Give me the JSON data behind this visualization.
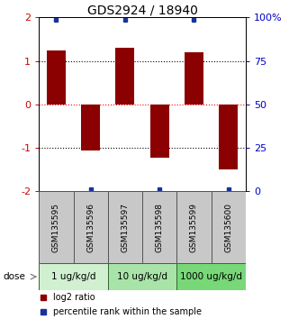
{
  "title": "GDS2924 / 18940",
  "samples": [
    "GSM135595",
    "GSM135596",
    "GSM135597",
    "GSM135598",
    "GSM135599",
    "GSM135600"
  ],
  "bar_values": [
    1.25,
    -1.05,
    1.3,
    -1.22,
    1.2,
    -1.5
  ],
  "blue_sq_y": [
    1.95,
    -1.95,
    1.95,
    -1.95,
    1.95,
    -1.95
  ],
  "bar_color": "#8B0000",
  "blue_color": "#1a3399",
  "ylim": [
    -2,
    2
  ],
  "yticks_left": [
    -2,
    -1,
    0,
    1,
    2
  ],
  "ytick_labels_left": [
    "-2",
    "-1",
    "0",
    "1",
    "2"
  ],
  "yticks_right_pos": [
    -2,
    -1,
    0,
    1,
    2
  ],
  "ytick_labels_right": [
    "0",
    "25",
    "50",
    "75",
    "100%"
  ],
  "hlines_black": [
    -1.0,
    1.0
  ],
  "hline_red": 0.0,
  "dose_groups": [
    {
      "label": "1 ug/kg/d",
      "cols": [
        0,
        1
      ],
      "color": "#d0f0d0"
    },
    {
      "label": "10 ug/kg/d",
      "cols": [
        2,
        3
      ],
      "color": "#a8e4a8"
    },
    {
      "label": "1000 ug/kg/d",
      "cols": [
        4,
        5
      ],
      "color": "#78d878"
    }
  ],
  "dose_label": "dose",
  "legend_red_label": "log2 ratio",
  "legend_blue_label": "percentile rank within the sample",
  "title_fontsize": 10,
  "tick_color_left": "#cc0000",
  "tick_color_right": "#0000cc",
  "bar_width": 0.55,
  "sample_label_fontsize": 6.5,
  "dose_fontsize": 7.5,
  "legend_fontsize": 7
}
